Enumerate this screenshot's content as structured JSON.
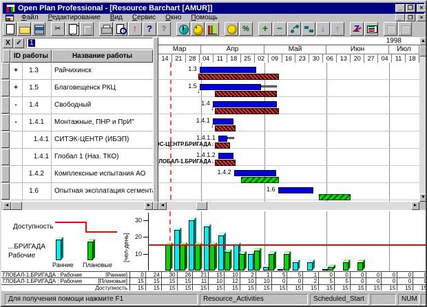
{
  "window": {
    "title": "Open Plan Professional - [Resource Barchart [AMUR]]",
    "year_label": "1998",
    "controls": {
      "minimize": "_",
      "restore": "❐",
      "close": "×"
    }
  },
  "menu": {
    "items": [
      {
        "key": "Ф",
        "rest": "айл"
      },
      {
        "key": "Р",
        "rest": "едактирование"
      },
      {
        "key": "В",
        "rest": "ид"
      },
      {
        "key": "С",
        "rest": "ервис"
      },
      {
        "key": "О",
        "rest": "кно"
      },
      {
        "key": "П",
        "rest": "омощь"
      }
    ]
  },
  "toolbar": {
    "buttons": [
      {
        "name": "new",
        "glyph": "",
        "disabled": false,
        "gap": false
      },
      {
        "name": "open",
        "glyph": "",
        "disabled": false,
        "gap": false
      },
      {
        "name": "save",
        "glyph": "",
        "disabled": false,
        "gap": false
      },
      {
        "name": "cut",
        "glyph": "✂",
        "disabled": false,
        "gap": true
      },
      {
        "name": "copy",
        "glyph": "",
        "disabled": false,
        "gap": false
      },
      {
        "name": "paste",
        "glyph": "",
        "disabled": true,
        "gap": false
      },
      {
        "name": "print",
        "glyph": "",
        "disabled": false,
        "gap": true
      },
      {
        "name": "preview",
        "glyph": "",
        "disabled": false,
        "gap": false
      },
      {
        "name": "update",
        "glyph": "↑",
        "disabled": false,
        "gap": false
      },
      {
        "name": "help",
        "glyph": "?",
        "disabled": false,
        "gap": false
      },
      {
        "name": "context-help",
        "glyph": "?",
        "disabled": true,
        "gap": false
      },
      {
        "name": "time-scale",
        "glyph": "",
        "disabled": false,
        "gap": true
      },
      {
        "name": "resource-view",
        "glyph": "",
        "disabled": false,
        "gap": false
      },
      {
        "name": "histogram-view",
        "glyph": "",
        "disabled": false,
        "gap": false
      },
      {
        "name": "cost",
        "glyph": "",
        "disabled": false,
        "gap": true
      },
      {
        "name": "percent",
        "glyph": "%",
        "disabled": false,
        "gap": false
      },
      {
        "name": "add-activity",
        "glyph": "+",
        "disabled": false,
        "gap": true
      },
      {
        "name": "delete-activity",
        "glyph": "−",
        "disabled": false,
        "gap": false
      },
      {
        "name": "link-activities",
        "glyph": "",
        "disabled": false,
        "gap": false
      },
      {
        "name": "link-bars",
        "glyph": "",
        "disabled": false,
        "gap": false
      },
      {
        "name": "move-down",
        "glyph": "↓",
        "disabled": false,
        "gap": false
      },
      {
        "name": "move-up",
        "glyph": "↑",
        "disabled": false,
        "gap": false
      },
      {
        "name": "sort-z",
        "glyph": "Z",
        "disabled": false,
        "gap": true
      },
      {
        "name": "view-settings",
        "glyph": "",
        "disabled": false,
        "gap": false
      },
      {
        "name": "prev-view",
        "glyph": "",
        "disabled": true,
        "gap": true
      },
      {
        "name": "next-view",
        "glyph": "",
        "disabled": true,
        "gap": false
      }
    ]
  },
  "edit_bar": {
    "cancel_label": "X",
    "accept_label": "✓",
    "input_value": "1"
  },
  "table": {
    "headers": {
      "id": "ID работы",
      "name": "Название работы"
    },
    "rows": [
      {
        "expand": "+",
        "id": "1.3",
        "name": "Райчихинск",
        "level": 2
      },
      {
        "expand": "+",
        "id": "1.5",
        "name": "Благовещенск РКЦ",
        "level": 2
      },
      {
        "expand": "-",
        "id": "1.4",
        "name": "Свободный",
        "level": 2
      },
      {
        "expand": "-",
        "id": "1.4.1",
        "name": "Монтажные, ПНР и ПрИ\"",
        "level": 3
      },
      {
        "expand": "",
        "id": "1.4.1",
        "name": "СИТЭК-ЦЕНТР (ИБЭП)",
        "level": 4
      },
      {
        "expand": "",
        "id": "1.4.1",
        "name": "Глобал 1 (Наз. ТКО)",
        "level": 4
      },
      {
        "expand": "",
        "id": "1.4.2",
        "name": "Комплексные испытания АО",
        "level": 3
      },
      {
        "expand": "",
        "id": "1.6",
        "name": "Опытная эксплатация сегмента",
        "level": 2
      }
    ]
  },
  "timeline": {
    "year": "1998",
    "months": [
      "Мар",
      "Апр",
      "Май",
      "Июн",
      "Июл"
    ],
    "weeks": [
      "14",
      "21",
      "28",
      "04",
      "11",
      "18",
      "25",
      "02",
      "09",
      "16",
      "23",
      "30",
      "06",
      "13",
      "20",
      "27",
      "04",
      "11",
      "18"
    ]
  },
  "chart_data": [
    {
      "type": "gantt",
      "note": "bar extents in week-column units (1 unit = 1 week column), estimated from pixels",
      "rows": [
        {
          "label": "1.3",
          "bars": [
            {
              "kind": "early",
              "from": 3.0,
              "to": 7.1
            },
            {
              "kind": "baseline",
              "from": 2.9,
              "to": 8.8
            }
          ]
        },
        {
          "label": "1.5",
          "arrow_at": 2.95,
          "bars": [
            {
              "kind": "early",
              "from": 3.0,
              "to": 7.45
            },
            {
              "kind": "float",
              "from": 7.45,
              "to": 8.65
            },
            {
              "kind": "baseline",
              "from": 4.1,
              "to": 8.6
            }
          ]
        },
        {
          "label": "1.4",
          "arrow_at": 3.95,
          "bars": [
            {
              "kind": "early",
              "from": 3.95,
              "to": 8.6
            },
            {
              "kind": "baseline",
              "from": 4.1,
              "to": 8.75
            }
          ]
        },
        {
          "label": "1.4.1",
          "arrow_at": 3.95,
          "bars": [
            {
              "kind": "early",
              "from": 3.95,
              "to": 5.45
            },
            {
              "kind": "baseline",
              "from": 4.1,
              "to": 5.6
            }
          ]
        },
        {
          "label": "1.4.1.1",
          "sublabel": "ТЭС-ЦЕНТР.БРИГАДА",
          "bars": [
            {
              "kind": "early",
              "from": 4.35,
              "to": 5.0
            },
            {
              "kind": "float",
              "from": 5.0,
              "to": 5.5
            },
            {
              "kind": "baseline",
              "from": 4.1,
              "to": 5.2
            }
          ]
        },
        {
          "label": "1.4.1.2",
          "sublabel": "ГЛОБАЛ-1.БРИГАДА",
          "bars": [
            {
              "kind": "early",
              "from": 4.35,
              "to": 5.45
            },
            {
              "kind": "baseline",
              "from": 4.1,
              "to": 5.6
            }
          ]
        },
        {
          "label": "1.4.2",
          "bars": [
            {
              "kind": "early",
              "from": 5.5,
              "to": 8.6
            },
            {
              "kind": "late",
              "from": 6.0,
              "to": 8.75
            }
          ]
        },
        {
          "label": "1.6",
          "bars": [
            {
              "kind": "early",
              "from": 8.7,
              "to": 11.3
            },
            {
              "kind": "late",
              "from": 11.7,
              "to": 14.0
            }
          ]
        }
      ],
      "colors": {
        "early": "#0000e0",
        "baseline": "#8a0000",
        "late": "#00dd00",
        "timenow": "#ff5050"
      }
    },
    {
      "type": "bar",
      "title": "",
      "ylabel": "[чел-день]",
      "yticks": [
        10,
        20,
        30
      ],
      "ylim": [
        0,
        33
      ],
      "categories": [
        "14",
        "21",
        "28",
        "04",
        "11",
        "18",
        "25",
        "02",
        "09",
        "16",
        "23",
        "30",
        "06",
        "13",
        "20",
        "27",
        "04",
        "11",
        "18"
      ],
      "series": [
        {
          "name": "Ранние",
          "color": "#00ffff",
          "values": [
            0,
            24,
            30,
            26,
            21,
            15,
            10,
            2,
            1,
            5,
            5,
            1,
            0,
            0,
            0,
            0,
            0,
            0,
            0
          ]
        },
        {
          "name": "Плановые",
          "color": "#00ff00",
          "values": [
            15,
            15,
            15,
            15,
            11,
            10,
            12,
            10,
            10,
            0,
            0,
            2,
            5,
            5,
            0,
            0,
            0,
            0,
            0
          ]
        },
        {
          "name": "Доступность",
          "color": "#ff0000",
          "values": [
            15,
            15,
            15,
            15,
            15,
            15,
            15,
            15,
            15,
            15,
            15,
            15,
            15,
            15,
            15,
            15,
            15,
            15,
            15
          ]
        }
      ],
      "availability_level": 15
    }
  ],
  "legend": {
    "availability": "Доступность",
    "resource_line1": "...БРИГАДА",
    "resource_line2": "Рабочие",
    "early": "Ранние",
    "planned": "Плановые"
  },
  "resource_table": {
    "rows": [
      {
        "label": "ГЛОБАЛ-1.БРИГАДА : Рабочие",
        "tag": "[Ранние]",
        "series_index": 0
      },
      {
        "label": "ГЛОБАЛ-1.БРИГАДА : Рабочие",
        "tag": "[Плановые]",
        "series_index": 1
      },
      {
        "label": "",
        "tag": "Доступность",
        "series_index": 2
      }
    ]
  },
  "status_bar": {
    "help_text": "Для получения помощи нажмите F1",
    "panel2": "Resource_Activities",
    "panel3": "Scheduled_Start",
    "panel4": "",
    "panel5": "NUM",
    "panel6": ""
  }
}
